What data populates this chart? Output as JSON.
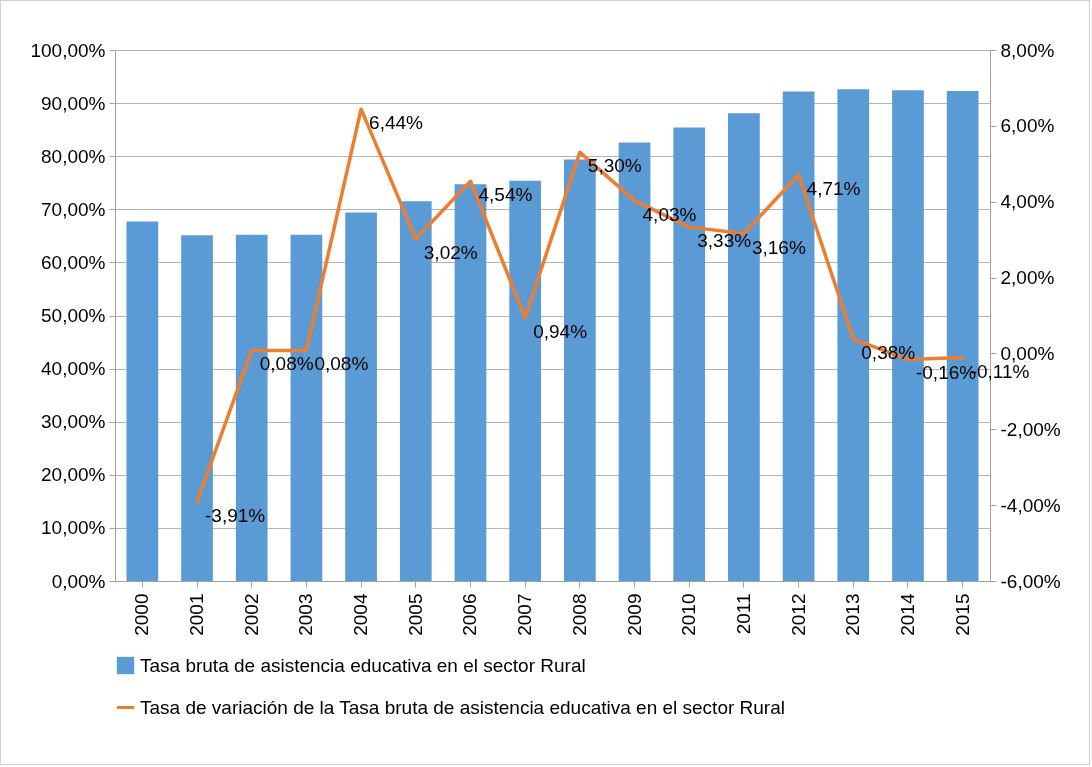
{
  "chart_data": {
    "type": "bar",
    "categories": [
      "2000",
      "2001",
      "2002",
      "2003",
      "2004",
      "2005",
      "2006",
      "2007",
      "2008",
      "2009",
      "2010",
      "2011",
      "2012",
      "2013",
      "2014",
      "2015"
    ],
    "series": [
      {
        "name": "Tasa bruta de asistencia educativa en el sector Rural",
        "color": "#5b9bd5",
        "values": [
          67.7,
          65.1,
          65.2,
          65.2,
          69.4,
          71.5,
          74.7,
          75.4,
          79.4,
          82.6,
          85.4,
          88.1,
          92.2,
          92.6,
          92.4,
          92.3
        ]
      },
      {
        "name": "Tasa de variación de la Tasa bruta de asistencia educativa en el sector Rural",
        "type": "line",
        "axis": "y2",
        "color": "#ed7d31",
        "values": [
          null,
          -3.91,
          0.08,
          0.08,
          6.44,
          3.02,
          4.54,
          0.94,
          5.3,
          4.03,
          3.33,
          3.16,
          4.71,
          0.38,
          -0.16,
          -0.11
        ],
        "value_labels": [
          null,
          "-3,91%",
          "0,08%",
          "0,08%",
          "6,44%",
          "3,02%",
          "4,54%",
          "0,94%",
          "5,30%",
          "4,03%",
          "3,33%",
          "3,16%",
          "4,71%",
          "0,38%",
          "-0,16%",
          "-0,11%"
        ]
      }
    ],
    "ylim": [
      0,
      100
    ],
    "yticks": [
      {
        "value": 0,
        "label": "0,00%"
      },
      {
        "value": 10,
        "label": "10,00%"
      },
      {
        "value": 20,
        "label": "20,00%"
      },
      {
        "value": 30,
        "label": "30,00%"
      },
      {
        "value": 40,
        "label": "40,00%"
      },
      {
        "value": 50,
        "label": "50,00%"
      },
      {
        "value": 60,
        "label": "60,00%"
      },
      {
        "value": 70,
        "label": "70,00%"
      },
      {
        "value": 80,
        "label": "80,00%"
      },
      {
        "value": 90,
        "label": "90,00%"
      },
      {
        "value": 100,
        "label": "100,00%"
      }
    ],
    "y2lim": [
      -6,
      8
    ],
    "y2ticks": [
      {
        "value": -6,
        "label": "-6,00%"
      },
      {
        "value": -4,
        "label": "-4,00%"
      },
      {
        "value": -2,
        "label": "-2,00%"
      },
      {
        "value": 0,
        "label": "0,00%"
      },
      {
        "value": 2,
        "label": "2,00%"
      },
      {
        "value": 4,
        "label": "4,00%"
      },
      {
        "value": 6,
        "label": "6,00%"
      },
      {
        "value": 8,
        "label": "8,00%"
      }
    ],
    "grid": "y",
    "legend": "bottom"
  }
}
